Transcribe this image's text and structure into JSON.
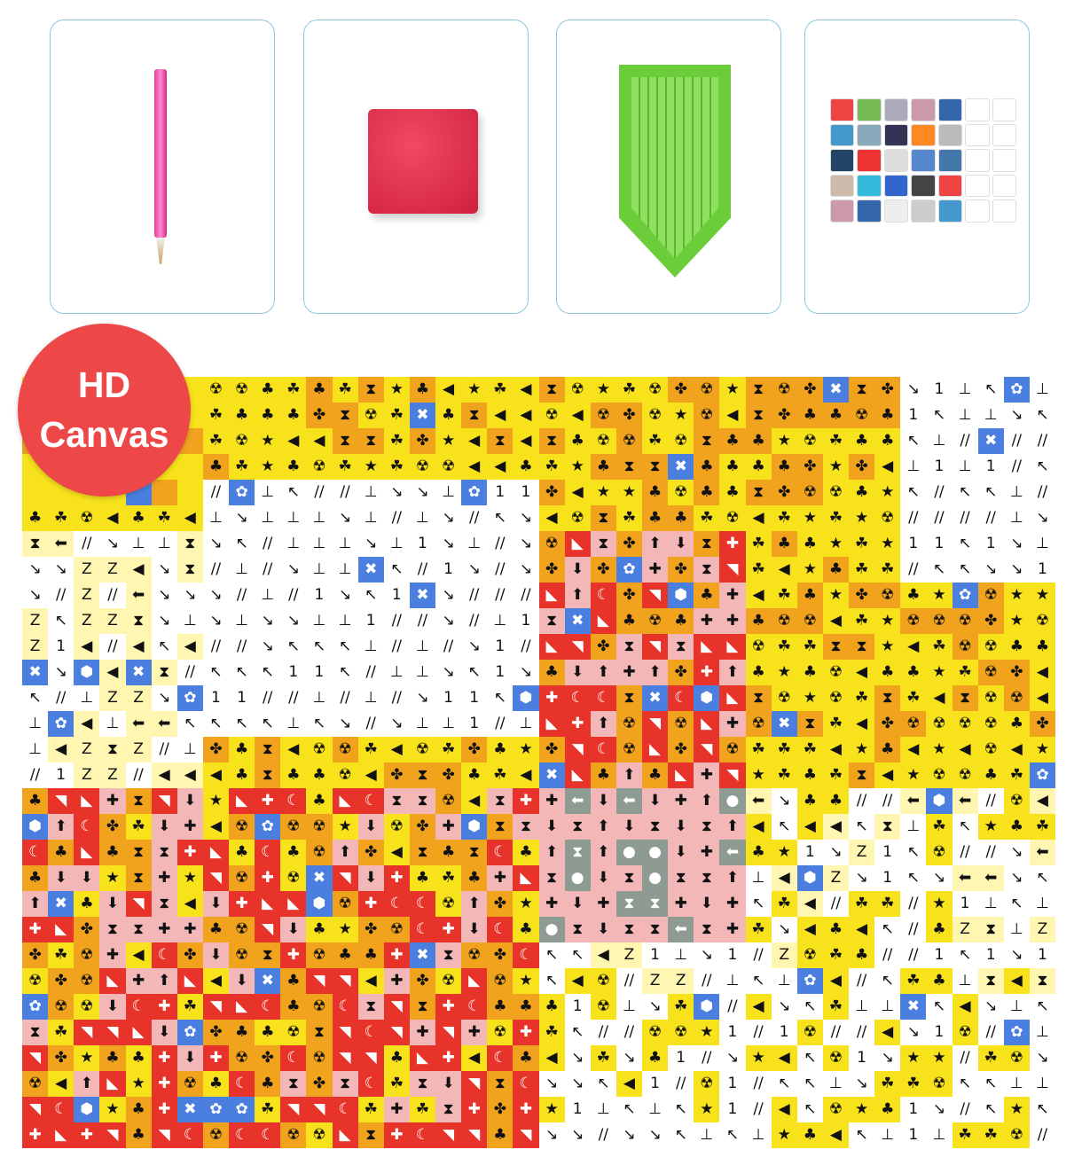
{
  "badge": {
    "line1": "HD",
    "line2": "Canvas",
    "color": "#ee4747"
  },
  "tools": [
    "diamond-pen",
    "wax-clay",
    "diamond-tray",
    "diamond-bags"
  ],
  "canvas": {
    "palette": {
      "yellow": "#f7e21c",
      "orange": "#f2a31e",
      "red": "#e8332a",
      "pink": "#f3b7b7",
      "pale": "#fff6b2",
      "white": "#ffffff",
      "gray": "#8d9b92",
      "blue": "#4a7fe0"
    }
  }
}
